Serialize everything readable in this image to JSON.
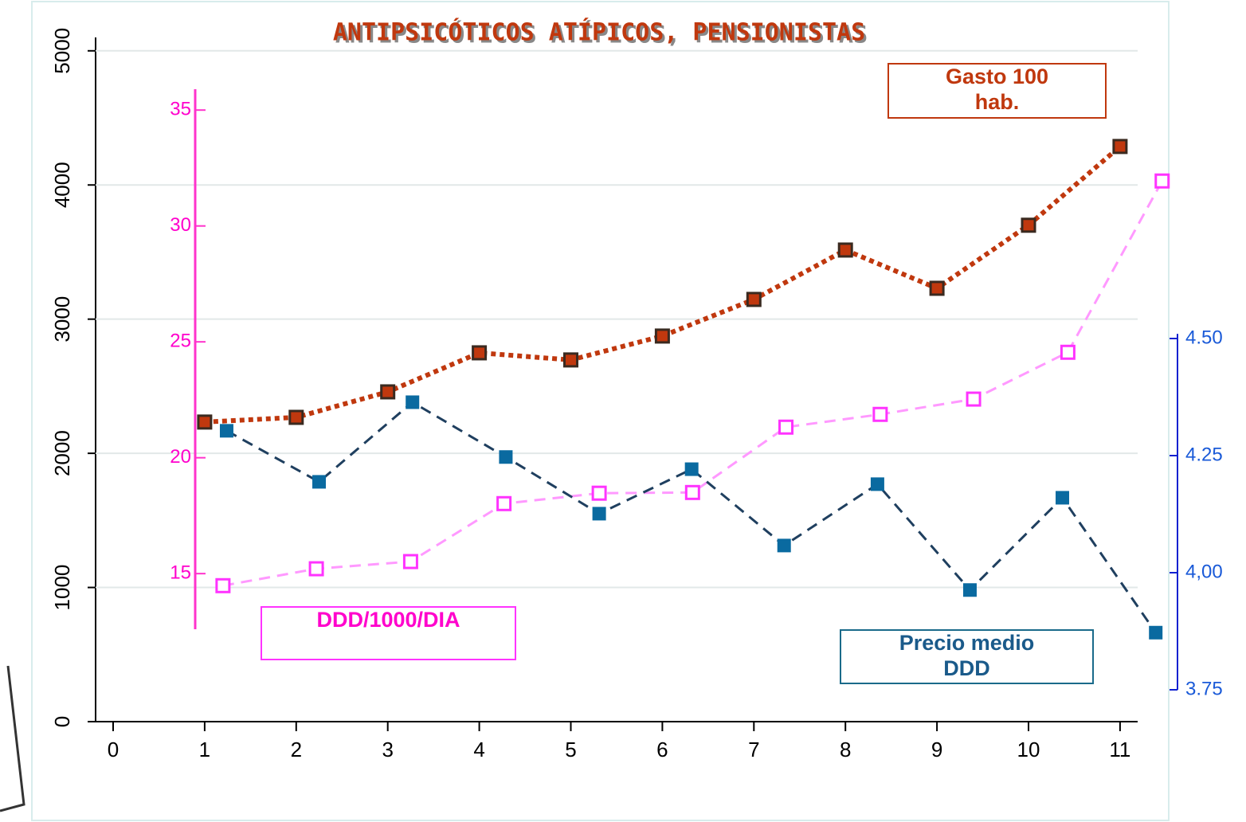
{
  "chart_data": {
    "type": "line",
    "title": "ANTIPSICÓTICOS ATÍPICOS, PENSIONISTAS",
    "xlim": [
      0,
      11.5
    ],
    "xticks": [
      0,
      1,
      2,
      3,
      4,
      5,
      6,
      7,
      8,
      9,
      10,
      11
    ],
    "ylim": [
      0,
      5100
    ],
    "yticks": [
      0,
      1000,
      2000,
      3000,
      4000,
      5000
    ],
    "y2lim": [
      12.6,
      35.9
    ],
    "y2ticks": [
      15,
      20,
      25,
      30,
      35
    ],
    "y3lim": [
      3.75,
      4.51
    ],
    "y3ticks": [
      3.75,
      {
        "value": 4.0,
        "label": "4,00"
      },
      4.25,
      {
        "value": 4.5,
        "label": "4.50"
      }
    ],
    "grid": true,
    "series": [
      {
        "name": "Gasto 100 hab.",
        "color": "#c0380e",
        "axis": "y",
        "x": [
          1,
          2,
          3,
          4,
          5,
          6,
          7,
          8,
          9,
          10,
          11
        ],
        "values": [
          2233,
          2268,
          2458,
          2749,
          2696,
          2874,
          3147,
          3515,
          3230,
          3700,
          4287
        ]
      },
      {
        "name": "DDD/1000/DIA",
        "color": "#ff33ff",
        "axis": "y2",
        "x": [
          1.2,
          2.22,
          3.25,
          4.27,
          5.31,
          6.33,
          7.35,
          8.38,
          9.4,
          10.43,
          11.46
        ],
        "values": [
          14.48,
          15.21,
          15.52,
          18.02,
          18.47,
          18.5,
          21.32,
          21.87,
          22.53,
          24.55,
          31.94
        ]
      },
      {
        "name": "Precio medio DDD",
        "color": "#0a6aa0",
        "axis": "y3",
        "x": [
          1.24,
          2.25,
          3.27,
          4.29,
          5.31,
          6.32,
          7.33,
          8.35,
          9.36,
          10.37,
          11.39
        ],
        "values": [
          4.303,
          4.194,
          4.364,
          4.247,
          4.126,
          4.221,
          4.058,
          4.189,
          3.963,
          4.16,
          3.872
        ]
      }
    ]
  }
}
